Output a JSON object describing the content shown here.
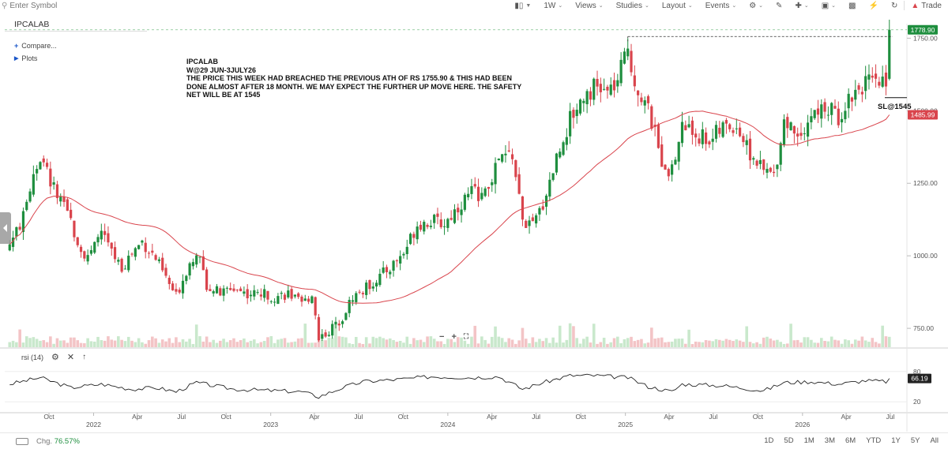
{
  "search": {
    "placeholder": "Enter Symbol"
  },
  "toolbar": {
    "interval": "1W",
    "views": "Views",
    "studies": "Studies",
    "layout": "Layout",
    "events": "Events",
    "trade": "Trade"
  },
  "symbol": "IPCALAB",
  "sidebar": {
    "compare": "Compare...",
    "plots": "Plots"
  },
  "annotation": {
    "lines": [
      "IPCALAB",
      "W@29 JUN-3JULY26",
      "THE PRICE THIS WEEK HAD BREACHED THE PREVIOUS ATH OF RS 1755.90 & THIS HAD BEEN",
      "DONE ALMOST AFTER 18 MONTH. WE MAY EXPECT THE FURTHER UP MOVE HERE. THE SAFETY",
      "NET WILL BE AT 1545"
    ],
    "sl_label": "SL@1545"
  },
  "price_tags": {
    "last": "1778.90",
    "ma": "1485.99",
    "rsi": "66.19"
  },
  "rsi_label": "rsi (14)",
  "bottom": {
    "chg_label": "Chg.",
    "chg_value": "76.57%",
    "ranges": [
      "1D",
      "5D",
      "1M",
      "3M",
      "6M",
      "YTD",
      "1Y",
      "5Y",
      "All"
    ]
  },
  "colors": {
    "up": "#1e8e3e",
    "down": "#d9444c",
    "ma": "#d9444c",
    "rsi": "#222222",
    "last_tag": "#1e8e3e",
    "ma_tag": "#d9444c"
  },
  "chart_data": {
    "type": "candlestick",
    "interval": "weekly",
    "y_ticks": [
      750,
      1000,
      1250,
      1500,
      1750
    ],
    "ylim": [
      685,
      1800
    ],
    "x_ticks": [
      {
        "label": "Oct",
        "date": "2021-10-01"
      },
      {
        "label": "2022",
        "date": "2022-01-01",
        "year": true
      },
      {
        "label": "Apr",
        "date": "2022-04-01"
      },
      {
        "label": "Jul",
        "date": "2022-07-01"
      },
      {
        "label": "Oct",
        "date": "2022-10-01"
      },
      {
        "label": "2023",
        "date": "2023-01-01",
        "year": true
      },
      {
        "label": "Apr",
        "date": "2023-04-01"
      },
      {
        "label": "Jul",
        "date": "2023-07-01"
      },
      {
        "label": "Oct",
        "date": "2023-10-01"
      },
      {
        "label": "2024",
        "date": "2024-01-01",
        "year": true
      },
      {
        "label": "Apr",
        "date": "2024-04-01"
      },
      {
        "label": "Jul",
        "date": "2024-07-01"
      },
      {
        "label": "Oct",
        "date": "2024-10-01"
      },
      {
        "label": "2025",
        "date": "2025-01-01",
        "year": true
      },
      {
        "label": "Apr",
        "date": "2025-04-01"
      },
      {
        "label": "Jul",
        "date": "2025-07-01"
      },
      {
        "label": "Oct",
        "date": "2025-10-01"
      },
      {
        "label": "2026",
        "date": "2026-01-01",
        "year": true
      },
      {
        "label": "Apr",
        "date": "2026-04-01"
      },
      {
        "label": "Jul",
        "date": "2026-07-01"
      }
    ],
    "close_path": [
      [
        "2021-07-12",
        1040
      ],
      [
        "2021-08-09",
        1130
      ],
      [
        "2021-08-30",
        1290
      ],
      [
        "2021-09-13",
        1340
      ],
      [
        "2021-10-04",
        1260
      ],
      [
        "2021-10-25",
        1180
      ],
      [
        "2021-11-15",
        1120
      ],
      [
        "2021-12-06",
        1020
      ],
      [
        "2021-12-27",
        1000
      ],
      [
        "2022-01-17",
        1090
      ],
      [
        "2022-02-07",
        1010
      ],
      [
        "2022-02-28",
        960
      ],
      [
        "2022-03-21",
        1010
      ],
      [
        "2022-04-11",
        1050
      ],
      [
        "2022-05-09",
        990
      ],
      [
        "2022-06-06",
        900
      ],
      [
        "2022-06-20",
        860
      ],
      [
        "2022-07-11",
        950
      ],
      [
        "2022-08-01",
        1020
      ],
      [
        "2022-08-22",
        900
      ],
      [
        "2022-09-19",
        870
      ],
      [
        "2022-10-17",
        890
      ],
      [
        "2022-11-14",
        870
      ],
      [
        "2022-12-12",
        870
      ],
      [
        "2023-01-09",
        860
      ],
      [
        "2023-02-06",
        870
      ],
      [
        "2023-03-06",
        830
      ],
      [
        "2023-03-27",
        870
      ],
      [
        "2023-04-10",
        720
      ],
      [
        "2023-05-01",
        740
      ],
      [
        "2023-05-29",
        790
      ],
      [
        "2023-06-19",
        860
      ],
      [
        "2023-07-10",
        880
      ],
      [
        "2023-08-07",
        920
      ],
      [
        "2023-09-04",
        960
      ],
      [
        "2023-10-02",
        1010
      ],
      [
        "2023-10-30",
        1110
      ],
      [
        "2023-11-27",
        1120
      ],
      [
        "2023-12-25",
        1110
      ],
      [
        "2024-01-22",
        1170
      ],
      [
        "2024-02-19",
        1220
      ],
      [
        "2024-03-18",
        1210
      ],
      [
        "2024-04-15",
        1330
      ],
      [
        "2024-05-13",
        1350
      ],
      [
        "2024-06-03",
        1120
      ],
      [
        "2024-06-24",
        1100
      ],
      [
        "2024-07-15",
        1180
      ],
      [
        "2024-08-12",
        1340
      ],
      [
        "2024-09-09",
        1470
      ],
      [
        "2024-10-07",
        1560
      ],
      [
        "2024-10-28",
        1580
      ],
      [
        "2024-11-25",
        1560
      ],
      [
        "2024-12-16",
        1600
      ],
      [
        "2025-01-06",
        1720
      ],
      [
        "2025-01-20",
        1600
      ],
      [
        "2025-02-17",
        1500
      ],
      [
        "2025-03-17",
        1330
      ],
      [
        "2025-04-07",
        1290
      ],
      [
        "2025-04-28",
        1450
      ],
      [
        "2025-05-26",
        1420
      ],
      [
        "2025-06-23",
        1400
      ],
      [
        "2025-07-21",
        1440
      ],
      [
        "2025-08-18",
        1450
      ],
      [
        "2025-09-15",
        1350
      ],
      [
        "2025-10-13",
        1290
      ],
      [
        "2025-11-03",
        1280
      ],
      [
        "2025-11-24",
        1470
      ],
      [
        "2025-12-22",
        1420
      ],
      [
        "2026-01-19",
        1480
      ],
      [
        "2026-02-16",
        1510
      ],
      [
        "2026-03-16",
        1480
      ],
      [
        "2026-04-13",
        1560
      ],
      [
        "2026-05-11",
        1600
      ],
      [
        "2026-06-01",
        1580
      ],
      [
        "2026-06-22",
        1620
      ],
      [
        "2026-06-29",
        1778.9
      ]
    ],
    "previous_ath": 1755.9,
    "stop_loss": 1545,
    "last_close": 1778.9,
    "ma_last": 1485.99,
    "rsi": {
      "period": 14,
      "levels": [
        80,
        20
      ],
      "last": 66.19,
      "path": [
        [
          "2021-07-12",
          55
        ],
        [
          "2021-09-13",
          68
        ],
        [
          "2021-11-15",
          48
        ],
        [
          "2022-01-17",
          55
        ],
        [
          "2022-03-21",
          45
        ],
        [
          "2022-05-09",
          48
        ],
        [
          "2022-06-20",
          40
        ],
        [
          "2022-08-01",
          58
        ],
        [
          "2022-10-17",
          45
        ],
        [
          "2022-12-12",
          43
        ],
        [
          "2023-03-06",
          40
        ],
        [
          "2023-04-10",
          30
        ],
        [
          "2023-05-29",
          48
        ],
        [
          "2023-07-10",
          60
        ],
        [
          "2023-10-02",
          65
        ],
        [
          "2023-11-27",
          70
        ],
        [
          "2024-02-19",
          68
        ],
        [
          "2024-04-15",
          70
        ],
        [
          "2024-06-03",
          45
        ],
        [
          "2024-07-15",
          58
        ],
        [
          "2024-09-09",
          72
        ],
        [
          "2024-10-28",
          72
        ],
        [
          "2025-01-06",
          68
        ],
        [
          "2025-02-17",
          50
        ],
        [
          "2025-04-07",
          40
        ],
        [
          "2025-04-28",
          55
        ],
        [
          "2025-07-21",
          52
        ],
        [
          "2025-10-13",
          42
        ],
        [
          "2025-11-24",
          58
        ],
        [
          "2026-01-19",
          60
        ],
        [
          "2026-03-16",
          55
        ],
        [
          "2026-05-11",
          62
        ],
        [
          "2026-06-22",
          60
        ],
        [
          "2026-06-29",
          66.19
        ]
      ]
    }
  }
}
